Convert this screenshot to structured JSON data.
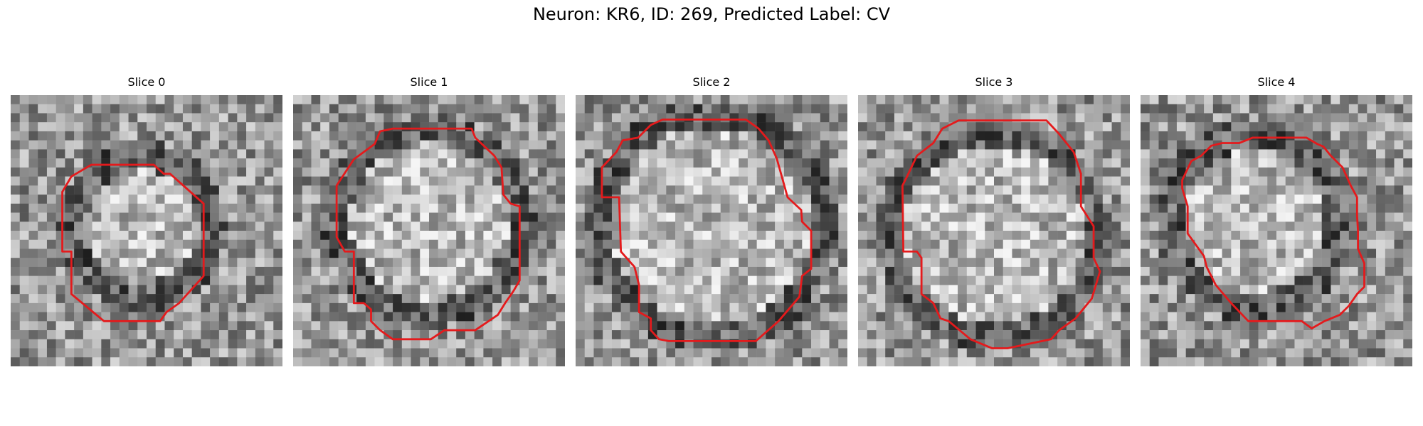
{
  "title": "Neuron: KR6, ID: 269, Predicted Label: CV",
  "contour_color": "#e41a1c",
  "panels": [
    {
      "label": "Slice 0"
    },
    {
      "label": "Slice 1"
    },
    {
      "label": "Slice 2"
    },
    {
      "label": "Slice 3"
    },
    {
      "label": "Slice 4"
    }
  ]
}
